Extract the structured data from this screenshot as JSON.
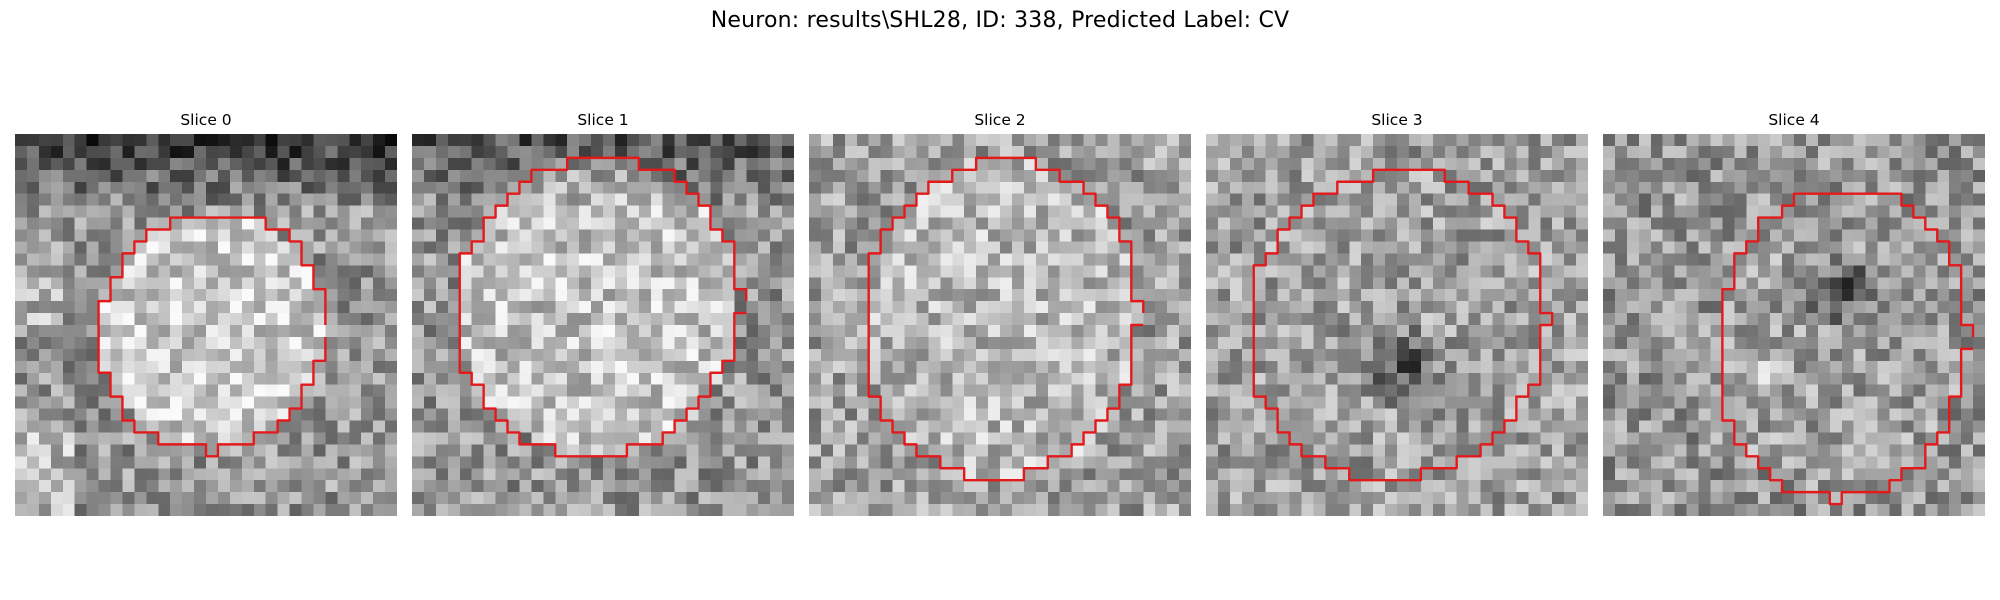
{
  "figure": {
    "title": "Neuron: results\\SHL28, ID: 338, Predicted Label: CV"
  },
  "panels": [
    {
      "title": "Slice 0"
    },
    {
      "title": "Slice 1"
    },
    {
      "title": "Slice 2"
    },
    {
      "title": "Slice 3"
    },
    {
      "title": "Slice 4"
    }
  ],
  "colors": {
    "contour": "#e31a1c",
    "background": "#ffffff"
  }
}
